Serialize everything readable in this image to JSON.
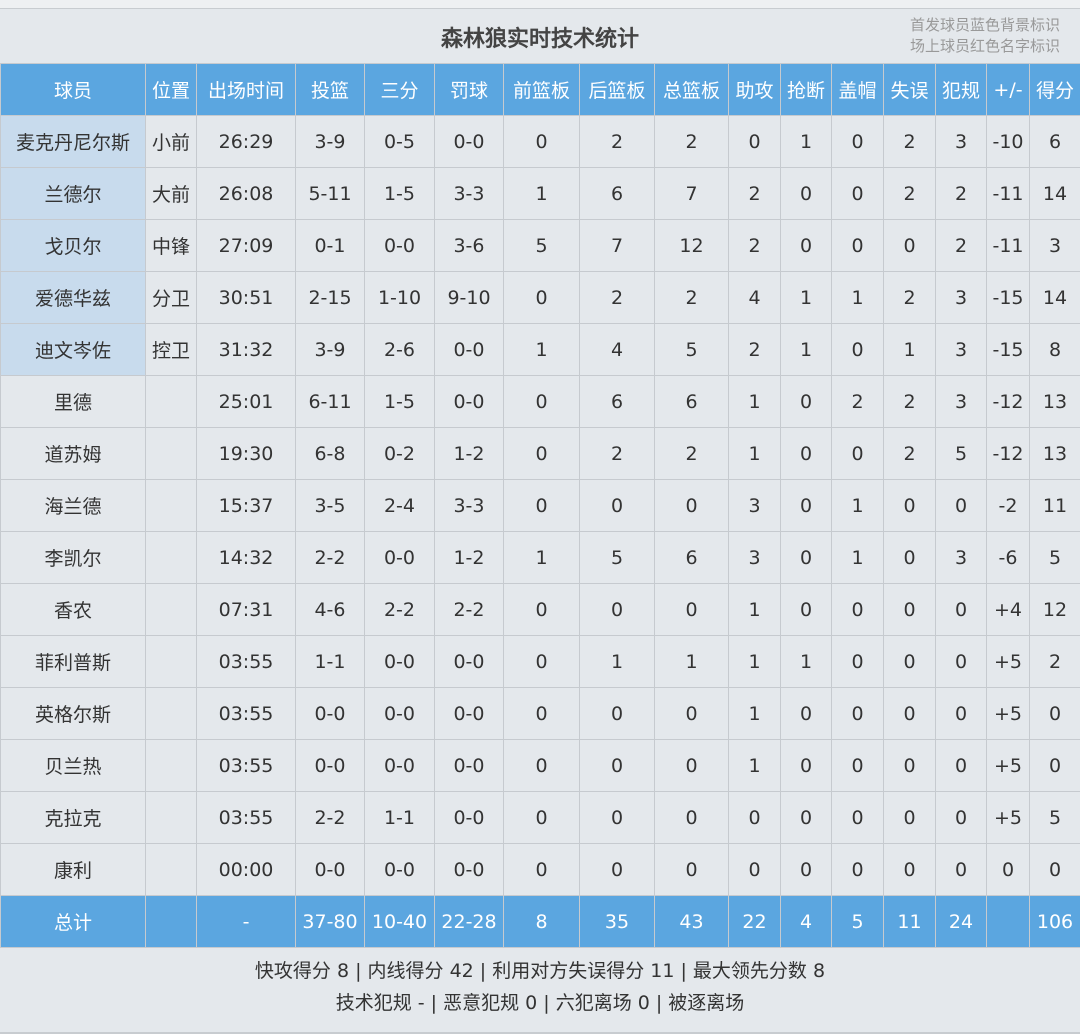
{
  "title": "森林狼实时技术统计",
  "legend": [
    "首发球员蓝色背景标识",
    "场上球员红色名字标识"
  ],
  "colors": {
    "header_bg": "#5ba6e0",
    "starter_bg": "#c8dbed",
    "body_bg": "#e4e8ec"
  },
  "columns": [
    "球员",
    "位置",
    "出场时间",
    "投篮",
    "三分",
    "罚球",
    "前篮板",
    "后篮板",
    "总篮板",
    "助攻",
    "抢断",
    "盖帽",
    "失误",
    "犯规",
    "+/-",
    "得分"
  ],
  "players": [
    {
      "starter": true,
      "cells": [
        "麦克丹尼尔斯",
        "小前",
        "26:29",
        "3-9",
        "0-5",
        "0-0",
        "0",
        "2",
        "2",
        "0",
        "1",
        "0",
        "2",
        "3",
        "-10",
        "6"
      ]
    },
    {
      "starter": true,
      "cells": [
        "兰德尔",
        "大前",
        "26:08",
        "5-11",
        "1-5",
        "3-3",
        "1",
        "6",
        "7",
        "2",
        "0",
        "0",
        "2",
        "2",
        "-11",
        "14"
      ]
    },
    {
      "starter": true,
      "cells": [
        "戈贝尔",
        "中锋",
        "27:09",
        "0-1",
        "0-0",
        "3-6",
        "5",
        "7",
        "12",
        "2",
        "0",
        "0",
        "0",
        "2",
        "-11",
        "3"
      ]
    },
    {
      "starter": true,
      "cells": [
        "爱德华兹",
        "分卫",
        "30:51",
        "2-15",
        "1-10",
        "9-10",
        "0",
        "2",
        "2",
        "4",
        "1",
        "1",
        "2",
        "3",
        "-15",
        "14"
      ]
    },
    {
      "starter": true,
      "cells": [
        "迪文岑佐",
        "控卫",
        "31:32",
        "3-9",
        "2-6",
        "0-0",
        "1",
        "4",
        "5",
        "2",
        "1",
        "0",
        "1",
        "3",
        "-15",
        "8"
      ]
    },
    {
      "starter": false,
      "cells": [
        "里德",
        "",
        "25:01",
        "6-11",
        "1-5",
        "0-0",
        "0",
        "6",
        "6",
        "1",
        "0",
        "2",
        "2",
        "3",
        "-12",
        "13"
      ]
    },
    {
      "starter": false,
      "cells": [
        "道苏姆",
        "",
        "19:30",
        "6-8",
        "0-2",
        "1-2",
        "0",
        "2",
        "2",
        "1",
        "0",
        "0",
        "2",
        "5",
        "-12",
        "13"
      ]
    },
    {
      "starter": false,
      "cells": [
        "海兰德",
        "",
        "15:37",
        "3-5",
        "2-4",
        "3-3",
        "0",
        "0",
        "0",
        "3",
        "0",
        "1",
        "0",
        "0",
        "-2",
        "11"
      ]
    },
    {
      "starter": false,
      "cells": [
        "李凯尔",
        "",
        "14:32",
        "2-2",
        "0-0",
        "1-2",
        "1",
        "5",
        "6",
        "3",
        "0",
        "1",
        "0",
        "3",
        "-6",
        "5"
      ]
    },
    {
      "starter": false,
      "cells": [
        "香农",
        "",
        "07:31",
        "4-6",
        "2-2",
        "2-2",
        "0",
        "0",
        "0",
        "1",
        "0",
        "0",
        "0",
        "0",
        "+4",
        "12"
      ]
    },
    {
      "starter": false,
      "cells": [
        "菲利普斯",
        "",
        "03:55",
        "1-1",
        "0-0",
        "0-0",
        "0",
        "1",
        "1",
        "1",
        "1",
        "0",
        "0",
        "0",
        "+5",
        "2"
      ]
    },
    {
      "starter": false,
      "cells": [
        "英格尔斯",
        "",
        "03:55",
        "0-0",
        "0-0",
        "0-0",
        "0",
        "0",
        "0",
        "1",
        "0",
        "0",
        "0",
        "0",
        "+5",
        "0"
      ]
    },
    {
      "starter": false,
      "cells": [
        "贝兰热",
        "",
        "03:55",
        "0-0",
        "0-0",
        "0-0",
        "0",
        "0",
        "0",
        "1",
        "0",
        "0",
        "0",
        "0",
        "+5",
        "0"
      ]
    },
    {
      "starter": false,
      "cells": [
        "克拉克",
        "",
        "03:55",
        "2-2",
        "1-1",
        "0-0",
        "0",
        "0",
        "0",
        "0",
        "0",
        "0",
        "0",
        "0",
        "+5",
        "5"
      ]
    },
    {
      "starter": false,
      "cells": [
        "康利",
        "",
        "00:00",
        "0-0",
        "0-0",
        "0-0",
        "0",
        "0",
        "0",
        "0",
        "0",
        "0",
        "0",
        "0",
        "0",
        "0"
      ]
    }
  ],
  "totals": [
    "总计",
    "",
    "-",
    "37-80",
    "10-40",
    "22-28",
    "8",
    "35",
    "43",
    "22",
    "4",
    "5",
    "11",
    "24",
    "",
    "106"
  ],
  "footer": {
    "line1": "快攻得分 8 | 内线得分 42 | 利用对方失误得分 11 | 最大领先分数 8",
    "line2": "技术犯规 - | 恶意犯规 0 | 六犯离场 0 | 被逐离场"
  }
}
